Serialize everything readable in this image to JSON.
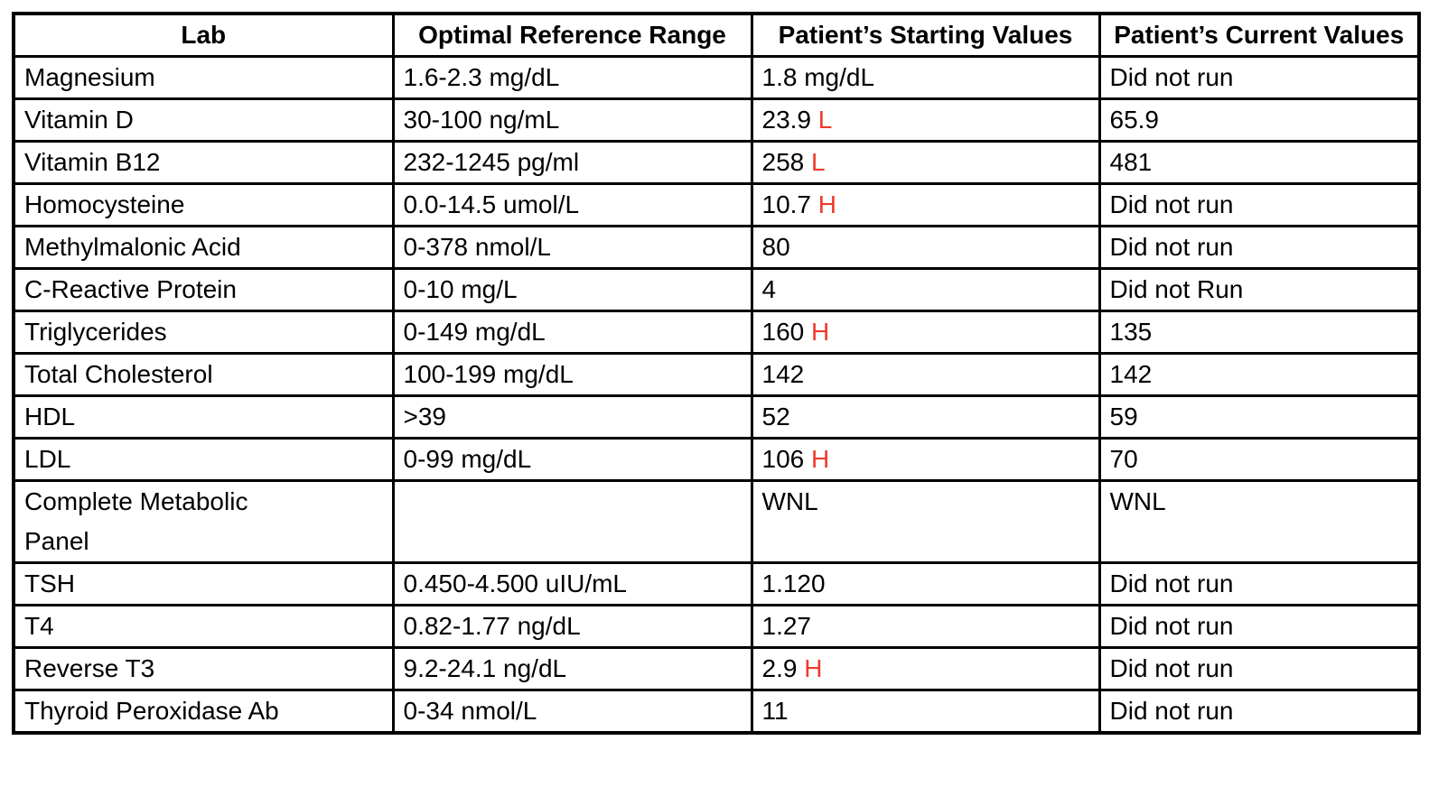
{
  "table": {
    "headers": [
      "Lab",
      "Optimal Reference Range",
      "Patient’s Starting Values",
      "Patient’s Current Values"
    ],
    "rows": [
      {
        "lab": "Magnesium",
        "range": "1.6-2.3 mg/dL",
        "starting": "1.8 mg/dL",
        "flag": "",
        "current": "Did not run"
      },
      {
        "lab": "Vitamin D",
        "range": "30-100 ng/mL",
        "starting": "23.9",
        "flag": "L",
        "current": "65.9"
      },
      {
        "lab": "Vitamin B12",
        "range": "232-1245 pg/ml",
        "starting": "258",
        "flag": "L",
        "current": "481"
      },
      {
        "lab": "Homocysteine",
        "range": "0.0-14.5 umol/L",
        "starting": "10.7",
        "flag": "H",
        "current": "Did not run"
      },
      {
        "lab": "Methylmalonic Acid",
        "range": "0-378 nmol/L",
        "starting": "80",
        "flag": "",
        "current": "Did not run"
      },
      {
        "lab": "C-Reactive Protein",
        "range": "0-10 mg/L",
        "starting": "4",
        "flag": "",
        "current": "Did not Run"
      },
      {
        "lab": "Triglycerides",
        "range": "0-149 mg/dL",
        "starting": "160",
        "flag": "H",
        "current": "135"
      },
      {
        "lab": "Total Cholesterol",
        "range": "100-199 mg/dL",
        "starting": "142",
        "flag": "",
        "current": "142"
      },
      {
        "lab": "HDL",
        "range": ">39",
        "starting": "52",
        "flag": "",
        "current": "59"
      },
      {
        "lab": "LDL",
        "range": "0-99 mg/dL",
        "starting": "106",
        "flag": "H",
        "current": "70"
      },
      {
        "lab": "Complete Metabolic\nPanel",
        "range": "",
        "starting": "WNL",
        "flag": "",
        "current": "WNL"
      },
      {
        "lab": "TSH",
        "range": "0.450-4.500 uIU/mL",
        "starting": "1.120",
        "flag": "",
        "current": "Did not run"
      },
      {
        "lab": "T4",
        "range": "0.82-1.77 ng/dL",
        "starting": "1.27",
        "flag": "",
        "current": "Did not run"
      },
      {
        "lab": "Reverse T3",
        "range": "9.2-24.1 ng/dL",
        "starting": "2.9",
        "flag": "H",
        "current": "Did not run"
      },
      {
        "lab": "Thyroid Peroxidase Ab",
        "range": "0-34 nmol/L",
        "starting": "11",
        "flag": "",
        "current": "Did not run"
      }
    ]
  },
  "colors": {
    "flag_red": "#ee3b2b",
    "border_black": "#000000",
    "text_black": "#000000",
    "background_white": "#ffffff"
  }
}
